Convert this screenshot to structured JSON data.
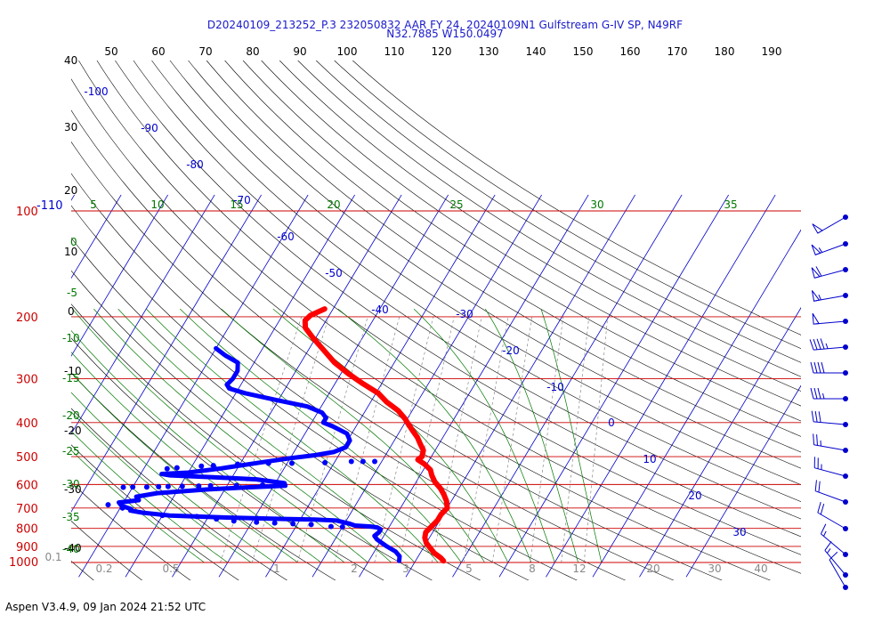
{
  "header": {
    "title_line1": "D20240109_213252_P.3 232050832 AAR FY 24, 20240109N1 Gulfstream G-IV SP, N49RF",
    "title_line2": "N32.7885 W150.0497"
  },
  "footer": {
    "text": "Aspen V3.4.9, 09 Jan 2024  21:52 UTC"
  },
  "colors": {
    "isobar": "#cc0000",
    "isotherm": "#0000cc",
    "dry_adiabat": "#000000",
    "moist_adiabat": "#007700",
    "mixing_ratio": "#888888",
    "temperature_trace": "#ff0000",
    "dewpoint_trace": "#0000ff",
    "wind_barb": "#0000cc"
  },
  "chart_data": {
    "type": "skew-t log-p sounding",
    "pressure_levels_hpa": [
      100,
      200,
      300,
      400,
      500,
      600,
      700,
      800,
      900,
      1000
    ],
    "pressure_tick_labels": [
      "100",
      "200",
      "300",
      "400",
      "500",
      "600",
      "700",
      "800",
      "900",
      "1000"
    ],
    "pressure_top_extra_label": "-110",
    "top_axis_labels": [
      "50",
      "60",
      "70",
      "80",
      "90",
      "100",
      "110",
      "120",
      "130",
      "140",
      "150",
      "160",
      "170",
      "180",
      "190"
    ],
    "height_labels": [
      "40",
      "30",
      "20",
      "10",
      "0",
      "-10",
      "-20",
      "-30",
      "-40"
    ],
    "isotherm_labels": [
      "-100",
      "-90",
      "-80",
      "-70",
      "-60",
      "-50",
      "-40",
      "-30",
      "-20",
      "-10",
      "0",
      "10",
      "20",
      "30"
    ],
    "moist_adiabat_labels": [
      "5",
      "10",
      "15",
      "20",
      "25",
      "30",
      "35"
    ],
    "left_green_labels": [
      "0",
      "-5",
      "-10",
      "-15",
      "-20",
      "-25",
      "-30",
      "-35",
      "-40"
    ],
    "mixing_ratio_labels": [
      "0.1",
      "0.2",
      "0.5",
      "1",
      "2",
      "3",
      "5",
      "8",
      "12",
      "20",
      "30",
      "40"
    ],
    "grid": true,
    "temperature_c": [
      [
        190,
        -51.8
      ],
      [
        198,
        -54.0
      ],
      [
        205,
        -54.5
      ],
      [
        215,
        -53.5
      ],
      [
        230,
        -50.5
      ],
      [
        250,
        -46.5
      ],
      [
        270,
        -42.8
      ],
      [
        290,
        -38.5
      ],
      [
        310,
        -34.0
      ],
      [
        330,
        -29.5
      ],
      [
        350,
        -26.5
      ],
      [
        370,
        -23.0
      ],
      [
        390,
        -20.5
      ],
      [
        400,
        -19.5
      ],
      [
        420,
        -17.5
      ],
      [
        440,
        -15.5
      ],
      [
        460,
        -14.0
      ],
      [
        480,
        -12.5
      ],
      [
        500,
        -12.0
      ],
      [
        510,
        -12.5
      ],
      [
        525,
        -10.5
      ],
      [
        545,
        -8.5
      ],
      [
        565,
        -7.5
      ],
      [
        590,
        -6.0
      ],
      [
        615,
        -4.0
      ],
      [
        640,
        -2.5
      ],
      [
        670,
        -1.0
      ],
      [
        700,
        0.0
      ],
      [
        730,
        -0.5
      ],
      [
        760,
        -0.5
      ],
      [
        790,
        -1.0
      ],
      [
        820,
        -1.5
      ],
      [
        850,
        -1.0
      ],
      [
        880,
        0.0
      ],
      [
        910,
        1.5
      ],
      [
        940,
        3.0
      ],
      [
        970,
        5.0
      ],
      [
        990,
        6.0
      ]
    ],
    "dewpoint_c": [
      [
        246,
        -70.0
      ],
      [
        258,
        -67.0
      ],
      [
        270,
        -63.5
      ],
      [
        285,
        -62.5
      ],
      [
        300,
        -62.5
      ],
      [
        312,
        -63.0
      ],
      [
        320,
        -62.0
      ],
      [
        330,
        -58.0
      ],
      [
        345,
        -50.5
      ],
      [
        360,
        -43.0
      ],
      [
        375,
        -39.0
      ],
      [
        388,
        -37.5
      ],
      [
        400,
        -37.5
      ],
      [
        410,
        -35.0
      ],
      [
        430,
        -31.0
      ],
      [
        450,
        -29.5
      ],
      [
        470,
        -29.5
      ],
      [
        485,
        -31.5
      ],
      [
        495,
        -35.0
      ],
      [
        500,
        -37.5
      ],
      [
        505,
        -40.0
      ],
      [
        520,
        -46.0
      ],
      [
        540,
        -53.5
      ],
      [
        555,
        -60.0
      ],
      [
        560,
        -65.5
      ],
      [
        565,
        -63.5
      ],
      [
        572,
        -54.0
      ],
      [
        580,
        -44.5
      ],
      [
        595,
        -38.0
      ],
      [
        605,
        -37.5
      ],
      [
        612,
        -46.0
      ],
      [
        620,
        -54.0
      ],
      [
        635,
        -64.0
      ],
      [
        650,
        -68.0
      ],
      [
        665,
        -67.0
      ],
      [
        675,
        -71.0
      ],
      [
        690,
        -70.0
      ],
      [
        705,
        -67.5
      ],
      [
        712,
        -67.5
      ],
      [
        722,
        -64.5
      ],
      [
        735,
        -58.5
      ],
      [
        745,
        -46.0
      ],
      [
        752,
        -33.5
      ],
      [
        755,
        -27.0
      ],
      [
        760,
        -22.0
      ],
      [
        775,
        -19.0
      ],
      [
        785,
        -17.5
      ],
      [
        790,
        -14.0
      ],
      [
        795,
        -12.5
      ],
      [
        805,
        -11.5
      ],
      [
        820,
        -11.5
      ],
      [
        840,
        -12.0
      ],
      [
        860,
        -11.0
      ],
      [
        880,
        -9.5
      ],
      [
        900,
        -8.0
      ],
      [
        930,
        -5.5
      ],
      [
        960,
        -4.0
      ],
      [
        990,
        -3.5
      ]
    ],
    "dewpoint_scatter_c": [
      [
        516,
        -21.5
      ],
      [
        516,
        -24.0
      ],
      [
        516,
        -26.5
      ],
      [
        520,
        -32.0
      ],
      [
        522,
        -39.0
      ],
      [
        522,
        -44.0
      ],
      [
        525,
        -50.5
      ],
      [
        530,
        -55.5
      ],
      [
        532,
        -58.0
      ],
      [
        538,
        -63.0
      ],
      [
        541,
        -65.0
      ],
      [
        602,
        -42.5
      ],
      [
        604,
        -48.0
      ],
      [
        605,
        -53.5
      ],
      [
        606,
        -56.0
      ],
      [
        607,
        -59.5
      ],
      [
        608,
        -62.5
      ],
      [
        609,
        -64.5
      ],
      [
        610,
        -67.0
      ],
      [
        610,
        -70.0
      ],
      [
        611,
        -72.0
      ],
      [
        685,
        -73.0
      ],
      [
        700,
        -69.5
      ],
      [
        735,
        -60.0
      ],
      [
        740,
        -52.5
      ],
      [
        752,
        -48.0
      ],
      [
        762,
        -44.0
      ],
      [
        768,
        -39.0
      ],
      [
        772,
        -35.0
      ],
      [
        776,
        -31.0
      ],
      [
        780,
        -27.0
      ],
      [
        790,
        -22.5
      ],
      [
        792,
        -20.0
      ]
    ],
    "wind_barbs": {
      "pressures_hpa": [
        180,
        220,
        270,
        320,
        370,
        420,
        480,
        540,
        600,
        660,
        720,
        780,
        840,
        900,
        960,
        1000
      ],
      "speeds_kt": [
        50,
        55,
        60,
        55,
        50,
        45,
        40,
        35,
        30,
        25,
        25,
        20,
        20,
        15,
        15,
        10
      ],
      "directions_deg": [
        240,
        250,
        255,
        260,
        265,
        265,
        270,
        270,
        275,
        280,
        285,
        290,
        300,
        310,
        320,
        330
      ]
    }
  }
}
